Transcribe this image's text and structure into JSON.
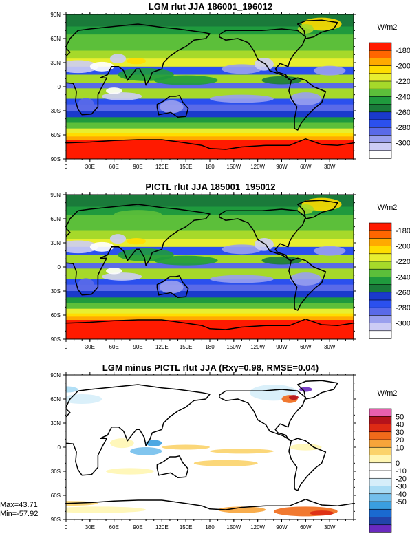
{
  "figure": {
    "stats": {
      "max": "Max=43.71",
      "min": "Min=-57.92"
    }
  },
  "chart_data": [
    {
      "type": "heatmap",
      "title": "LGM rlut JJA 186001_196012",
      "units": "W/m2",
      "x_ticks": [
        "0",
        "30E",
        "60E",
        "90E",
        "120E",
        "150E",
        "180",
        "150W",
        "120W",
        "90W",
        "60W",
        "30W"
      ],
      "y_ticks": [
        "90N",
        "60N",
        "30N",
        "0",
        "30S",
        "60S",
        "90S"
      ],
      "colorbar": {
        "labels": [
          "-180",
          "-200",
          "-220",
          "-240",
          "-260",
          "-280",
          "-300"
        ],
        "colors": [
          "#ff1a00",
          "#ff6600",
          "#ffaa00",
          "#ffdd00",
          "#e8ee30",
          "#a6d92a",
          "#5cbf3a",
          "#1f9a3d",
          "#1a7a3a",
          "#1a3acc",
          "#2b50ee",
          "#5a6ae8",
          "#9aa0ee",
          "#ccccf5",
          "#ffffff"
        ]
      }
    },
    {
      "type": "heatmap",
      "title": "PICTL rlut JJA 185001_195012",
      "units": "W/m2",
      "x_ticks": [
        "0",
        "30E",
        "60E",
        "90E",
        "120E",
        "150E",
        "180",
        "150W",
        "120W",
        "90W",
        "60W",
        "30W"
      ],
      "y_ticks": [
        "90N",
        "60N",
        "30N",
        "0",
        "30S",
        "60S",
        "90S"
      ],
      "colorbar": {
        "labels": [
          "-180",
          "-200",
          "-220",
          "-240",
          "-260",
          "-280",
          "-300"
        ],
        "colors": [
          "#ff1a00",
          "#ff6600",
          "#ffaa00",
          "#ffdd00",
          "#e8ee30",
          "#a6d92a",
          "#5cbf3a",
          "#1f9a3d",
          "#1a7a3a",
          "#1a3acc",
          "#2b50ee",
          "#5a6ae8",
          "#9aa0ee",
          "#ccccf5",
          "#ffffff"
        ]
      }
    },
    {
      "type": "heatmap",
      "title": "LGM minus PICTL rlut JJA (Rxy=0.98, RMSE=0.04)",
      "units": "W/m2",
      "x_ticks": [
        "0",
        "30E",
        "60E",
        "90E",
        "120E",
        "150E",
        "180",
        "150W",
        "120W",
        "90W",
        "60W",
        "30W"
      ],
      "y_ticks": [
        "90N",
        "60N",
        "30N",
        "0",
        "30S",
        "60S",
        "90S"
      ],
      "colorbar": {
        "labels": [
          "50",
          "40",
          "30",
          "20",
          "10",
          "0",
          "-10",
          "-20",
          "-30",
          "-40",
          "-50"
        ],
        "colors": [
          "#e85fae",
          "#b5121b",
          "#dd2a14",
          "#f06a1a",
          "#f7a43a",
          "#fbd36a",
          "#fff6b3",
          "#ffffff",
          "#ffffff",
          "#d6eefa",
          "#a9dcf5",
          "#73bfec",
          "#3a9ee0",
          "#1a6ad0",
          "#2244aa",
          "#6a2ac0"
        ]
      }
    }
  ]
}
